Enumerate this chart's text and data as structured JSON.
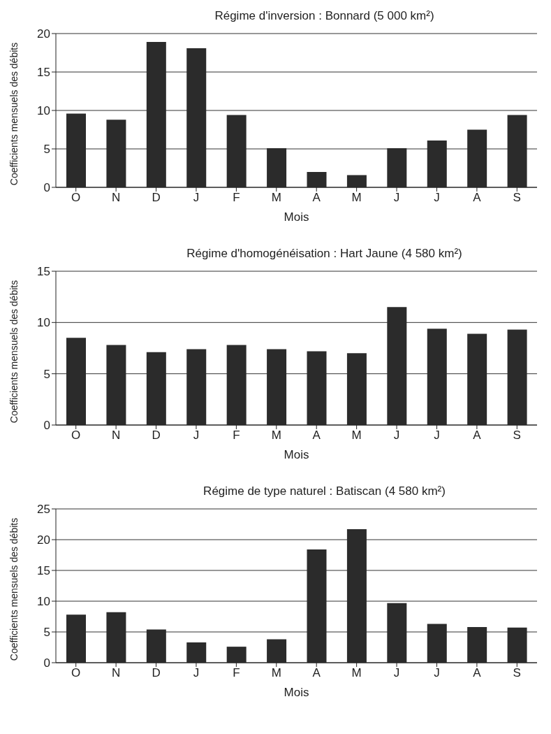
{
  "chart_data": [
    {
      "type": "bar",
      "title": "Régime d'inversion : Bonnard (5 000 km²)",
      "xlabel": "Mois",
      "ylabel": "Coefficients mensuels des débits",
      "categories": [
        "O",
        "N",
        "D",
        "J",
        "F",
        "M",
        "A",
        "M",
        "J",
        "J",
        "A",
        "S"
      ],
      "values": [
        9.6,
        8.8,
        18.9,
        18.1,
        9.4,
        5.1,
        2.0,
        1.6,
        5.1,
        6.1,
        7.5,
        9.4
      ],
      "color": "#2b2b2b",
      "ylim": [
        0,
        20
      ],
      "yticks": [
        0,
        5,
        10,
        15,
        20
      ],
      "grid": "y"
    },
    {
      "type": "bar",
      "title": "Régime d'homogénéisation : Hart Jaune (4 580 km²)",
      "xlabel": "Mois",
      "ylabel": "Coefficients mensuels des débits",
      "categories": [
        "O",
        "N",
        "D",
        "J",
        "F",
        "M",
        "A",
        "M",
        "J",
        "J",
        "A",
        "S"
      ],
      "values": [
        8.5,
        7.8,
        7.1,
        7.4,
        7.8,
        7.4,
        7.2,
        7.0,
        11.5,
        9.4,
        8.9,
        9.3
      ],
      "color": "#2b2b2b",
      "ylim": [
        0,
        15
      ],
      "yticks": [
        0,
        5,
        10,
        15
      ],
      "grid": "y"
    },
    {
      "type": "bar",
      "title": "Régime de type naturel : Batiscan (4 580 km²)",
      "xlabel": "Mois",
      "ylabel": "Coefficients mensuels des débits",
      "categories": [
        "O",
        "N",
        "D",
        "J",
        "F",
        "M",
        "A",
        "M",
        "J",
        "J",
        "A",
        "S"
      ],
      "values": [
        7.8,
        8.2,
        5.4,
        3.3,
        2.6,
        3.8,
        18.4,
        21.7,
        9.7,
        6.3,
        5.8,
        5.7
      ],
      "color": "#2b2b2b",
      "ylim": [
        0,
        25
      ],
      "yticks": [
        0,
        5,
        10,
        15,
        20,
        25
      ],
      "grid": "y"
    }
  ]
}
